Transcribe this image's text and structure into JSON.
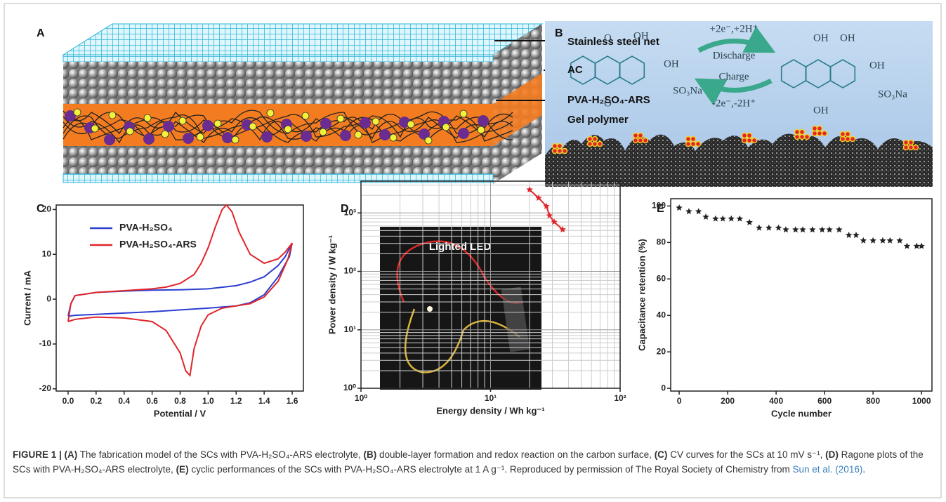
{
  "panel_a": {
    "label": "A",
    "annotations": [
      "Stainless steel net",
      "AC",
      "PVA-H₂SO₄-ARS",
      "Gel polymer"
    ]
  },
  "panel_b": {
    "label": "B",
    "left_molecule": [
      "O",
      "OH",
      "OH",
      "SO₃Na",
      "O"
    ],
    "right_molecule": [
      "OH",
      "OH",
      "OH",
      "SO₃Na",
      "OH"
    ],
    "reaction": {
      "forward": "+2e⁻,+2H⁺",
      "discharge": "Discharge",
      "charge": "Charge",
      "reverse": "-2e⁻,-2H⁺"
    }
  },
  "panel_c": {
    "type": "line",
    "label": "C",
    "x_label": "Potential / V",
    "y_label": "Current / mA",
    "xlim": [
      -0.085,
      1.68
    ],
    "ylim": [
      -20.5,
      21
    ],
    "xticks": [
      {
        "value": 0,
        "label": "0.0"
      },
      0.2,
      0.4,
      0.6,
      0.8,
      {
        "value": 1,
        "label": "1.0"
      },
      1.2,
      1.4,
      1.6
    ],
    "yticks": [
      -20,
      -10,
      0,
      10,
      20
    ],
    "legend": "upper left",
    "series": [
      {
        "name": "PVA-H₂SO₄",
        "color": "#2b3fd0",
        "x": [
          0,
          0.02,
          0.05,
          0.2,
          0.4,
          0.6,
          0.8,
          1.0,
          1.2,
          1.3,
          1.4,
          1.5,
          1.55,
          1.6,
          1.58,
          1.5,
          1.4,
          1.3,
          1.2,
          1.0,
          0.8,
          0.6,
          0.4,
          0.2,
          0.05,
          0
        ],
        "values": [
          -3.8,
          -1,
          0.8,
          1.5,
          1.8,
          2,
          2.1,
          2.3,
          3,
          3.8,
          5,
          7.5,
          9.5,
          12.5,
          9.5,
          5,
          1,
          -0.8,
          -1.5,
          -2,
          -2.4,
          -2.8,
          -3.1,
          -3.4,
          -3.6,
          -3.8
        ]
      },
      {
        "name": "PVA-H₂SO₄-ARS",
        "color": "#e0262b",
        "x": [
          0,
          0.02,
          0.05,
          0.2,
          0.4,
          0.6,
          0.7,
          0.8,
          0.9,
          0.95,
          1.0,
          1.05,
          1.1,
          1.13,
          1.17,
          1.22,
          1.3,
          1.4,
          1.5,
          1.55,
          1.6,
          1.57,
          1.5,
          1.4,
          1.3,
          1.2,
          1.1,
          1.0,
          0.95,
          0.9,
          0.87,
          0.84,
          0.8,
          0.7,
          0.6,
          0.4,
          0.2,
          0.05,
          0
        ],
        "values": [
          -5,
          -1,
          0.8,
          1.5,
          1.9,
          2.3,
          2.7,
          3.5,
          5.5,
          8,
          11.5,
          16,
          20,
          21,
          19.5,
          15,
          10,
          8,
          9,
          10.5,
          12.5,
          9,
          4,
          0.5,
          -1,
          -1.5,
          -2,
          -3.5,
          -6,
          -11,
          -17,
          -16,
          -12,
          -7,
          -5,
          -4.2,
          -4,
          -4.5,
          -5
        ]
      }
    ]
  },
  "panel_d": {
    "type": "line",
    "label": "D",
    "x_label": "Energy density / Wh kg⁻¹",
    "y_label": "Power density / W kg⁻¹",
    "log_x": true,
    "log_y": true,
    "grid": true,
    "minor_grid": true,
    "xlim": [
      1,
      100
    ],
    "ylim": [
      1,
      3500
    ],
    "xticks": [
      {
        "value": 1,
        "label": "10⁰"
      },
      {
        "value": 10,
        "label": "10¹"
      },
      {
        "value": 100,
        "label": "10²"
      }
    ],
    "yticks": [
      {
        "value": 1,
        "label": "10⁰"
      },
      {
        "value": 10,
        "label": "10¹"
      },
      {
        "value": 100,
        "label": "10²"
      },
      {
        "value": 1000,
        "label": "10³"
      }
    ],
    "inset_text": "Lighted LED",
    "series": [
      {
        "color": "#e0262b",
        "marker": "star",
        "x": [
          20,
          23.5,
          27,
          28.5,
          31,
          36
        ],
        "values": [
          2500,
          1800,
          1300,
          900,
          700,
          520
        ]
      }
    ]
  },
  "panel_e": {
    "type": "scatter",
    "label": "E",
    "x_label": "Cycle number",
    "y_label": "Capacitance retention (%)",
    "xlim": [
      -35,
      1043
    ],
    "ylim": [
      -1.5,
      104
    ],
    "xticks": [
      0,
      200,
      400,
      600,
      800,
      1000
    ],
    "yticks": [
      0,
      20,
      40,
      60,
      80,
      100
    ],
    "marker": "star",
    "color": "#222222",
    "x": [
      0,
      40,
      80,
      110,
      150,
      180,
      215,
      250,
      290,
      330,
      370,
      410,
      440,
      480,
      510,
      550,
      590,
      620,
      660,
      700,
      730,
      760,
      800,
      840,
      870,
      910,
      940,
      980,
      1000
    ],
    "values": [
      99,
      97,
      97,
      94,
      93,
      93,
      93,
      93,
      91,
      88,
      88,
      88,
      87,
      87,
      87,
      87,
      87,
      87,
      87,
      84,
      84,
      81,
      81,
      81,
      81,
      81,
      78,
      78,
      78
    ]
  },
  "caption": {
    "segments": [
      {
        "text": "FIGURE 1 | (A)",
        "style": "bold"
      },
      {
        "text": " The fabrication model of the SCs with PVA-H₂SO₄-ARS electrolyte, ",
        "style": "plain"
      },
      {
        "text": "(B)",
        "style": "bold"
      },
      {
        "text": " double-layer formation and redox reaction on the carbon surface, ",
        "style": "plain"
      },
      {
        "text": "(C)",
        "style": "bold"
      },
      {
        "text": " CV curves for the SCs at 10 mV s⁻¹, ",
        "style": "plain"
      },
      {
        "text": "(D)",
        "style": "bold"
      },
      {
        "text": " Ragone plots of the SCs with PVA-H₂SO₄-ARS electrolyte, ",
        "style": "plain"
      },
      {
        "text": "(E)",
        "style": "bold"
      },
      {
        "text": " cyclic performances of the SCs with PVA-H₂SO₄-ARS electrolyte at 1 A g⁻¹. Reproduced by permission of The Royal Society of Chemistry from ",
        "style": "plain"
      },
      {
        "text": "Sun et al. (2016)",
        "style": "link"
      },
      {
        "text": ".",
        "style": "plain"
      }
    ]
  }
}
